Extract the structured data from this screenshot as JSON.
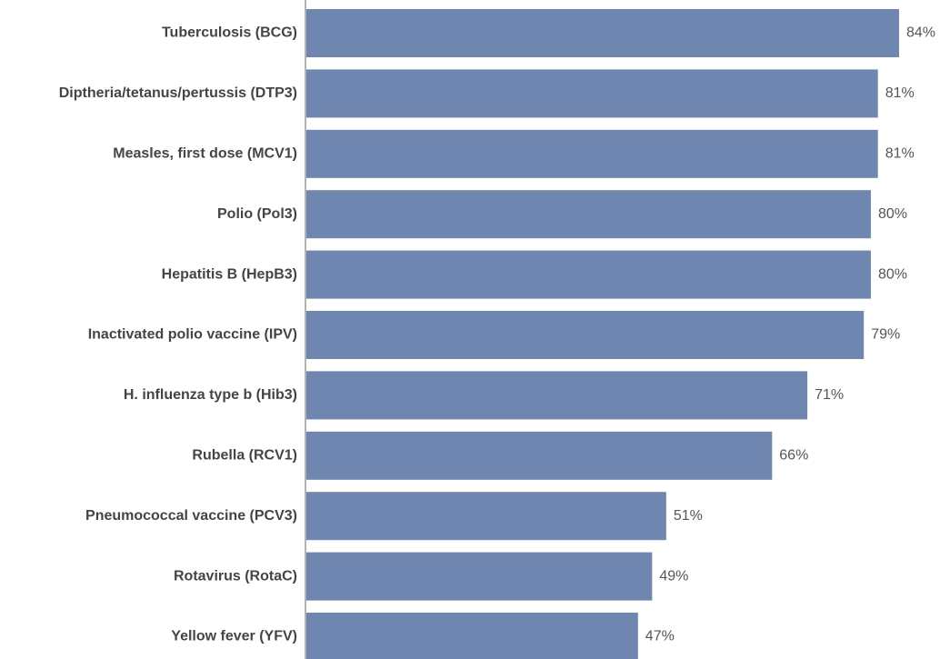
{
  "chart_data": {
    "type": "bar",
    "orientation": "horizontal",
    "categories": [
      "Tuberculosis (BCG)",
      "Diptheria/tetanus/pertussis (DTP3)",
      "Measles, first dose (MCV1)",
      "Polio (Pol3)",
      "Hepatitis B (HepB3)",
      "Inactivated polio vaccine (IPV)",
      "H. influenza type b (Hib3)",
      "Rubella (RCV1)",
      "Pneumococcal vaccine (PCV3)",
      "Rotavirus (RotaC)",
      "Yellow fever (YFV)"
    ],
    "values": [
      84,
      81,
      81,
      80,
      80,
      79,
      71,
      66,
      51,
      49,
      47
    ],
    "value_labels": [
      "84%",
      "81%",
      "81%",
      "80%",
      "80%",
      "79%",
      "71%",
      "66%",
      "51%",
      "49%",
      "47%"
    ],
    "unit": "%",
    "xlim": [
      0,
      84
    ],
    "grid": false,
    "colors": {
      "bar": "#6f87b0",
      "axis": "#999999",
      "label": "#444444",
      "value": "#555555"
    }
  }
}
